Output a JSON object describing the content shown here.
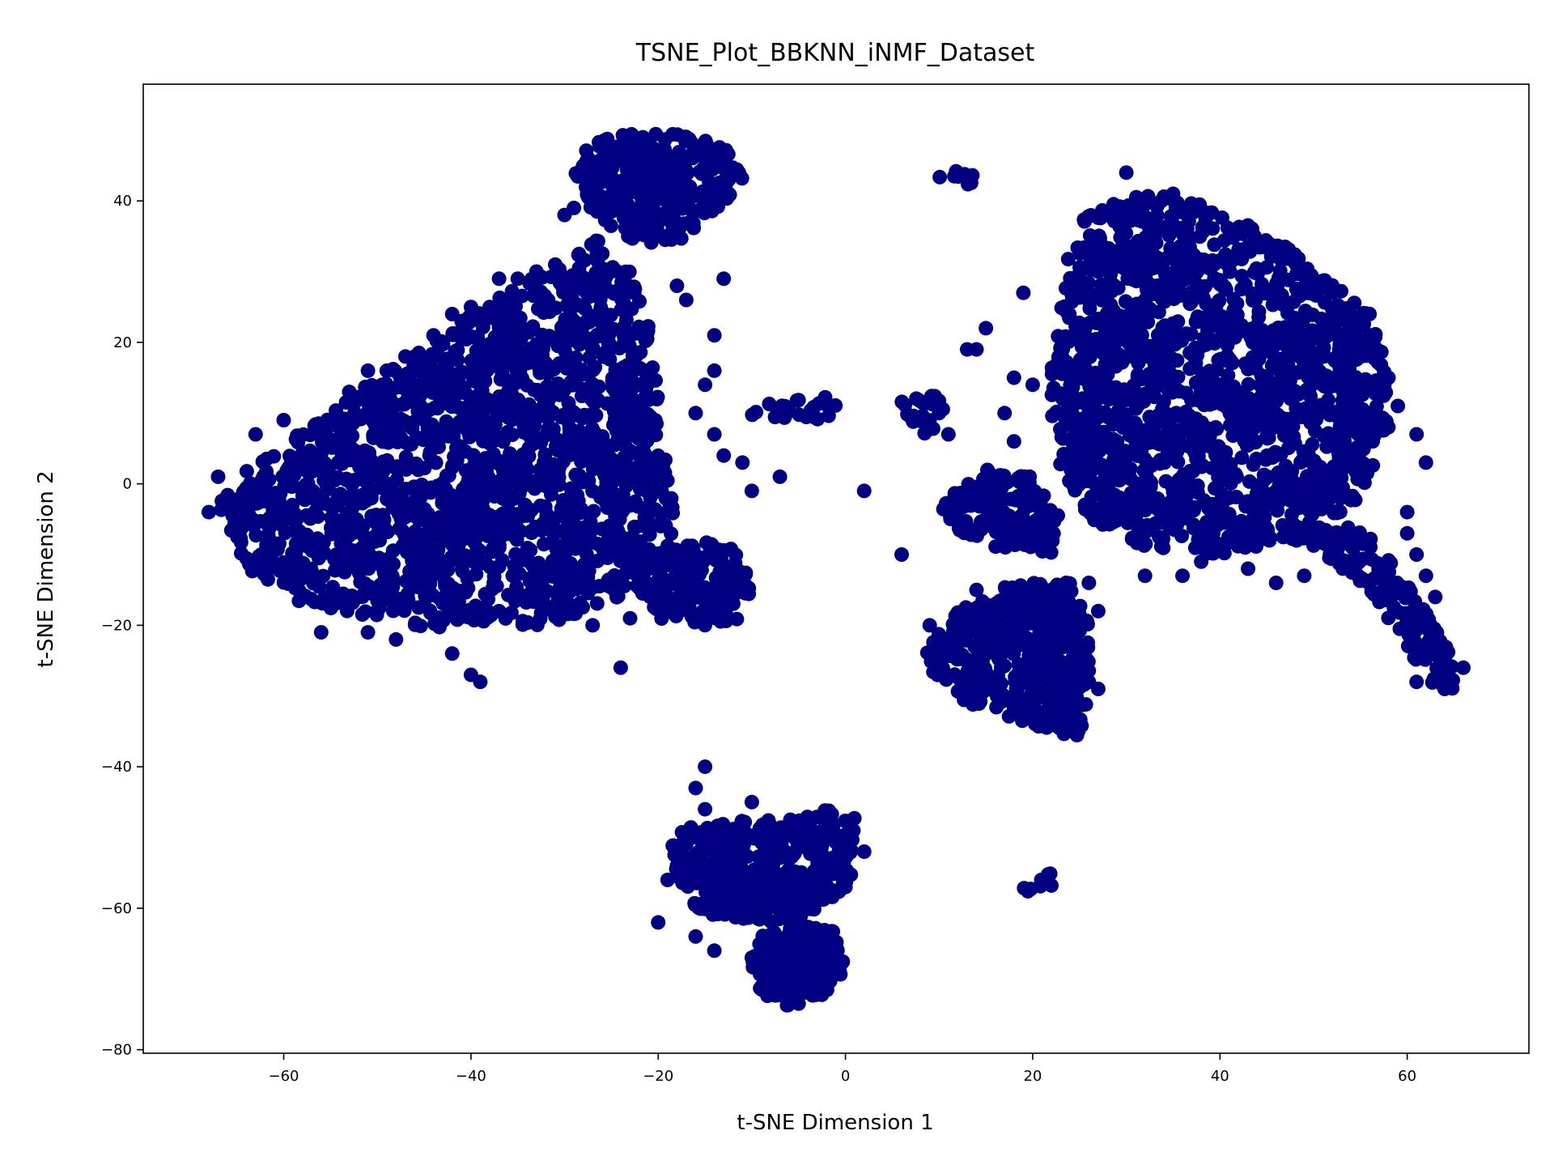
{
  "chart_data": {
    "type": "scatter",
    "title": "TSNE_Plot_BBKNN_iNMF_Dataset",
    "xlabel": "t-SNE Dimension 1",
    "ylabel": "t-SNE Dimension 2",
    "xlim": [
      -75,
      73
    ],
    "ylim": [
      -80.5,
      56.5
    ],
    "xticks": [
      -60,
      -40,
      -20,
      0,
      20,
      40,
      60
    ],
    "xtick_labels": [
      "−60",
      "−40",
      "−20",
      "0",
      "20",
      "40",
      "60"
    ],
    "yticks": [
      -80,
      -60,
      -40,
      -20,
      0,
      20,
      40
    ],
    "ytick_labels": [
      "−80",
      "−60",
      "−40",
      "−20",
      "0",
      "20",
      "40"
    ],
    "grid": false,
    "legend": "none",
    "point_color": "#000080",
    "clusters": [
      {
        "shape": "poly",
        "pts": [
          [
            -67,
            -3
          ],
          [
            -64,
            -12
          ],
          [
            -58,
            -17
          ],
          [
            -50,
            -19
          ],
          [
            -42,
            -21
          ],
          [
            -32,
            -20
          ],
          [
            -26,
            -17
          ],
          [
            -20,
            -14
          ],
          [
            -18,
            -8
          ],
          [
            -19,
            2
          ],
          [
            -20,
            12
          ],
          [
            -21,
            22
          ],
          [
            -23,
            30
          ],
          [
            -26,
            35
          ],
          [
            -32,
            30
          ],
          [
            -38,
            26
          ],
          [
            -44,
            20
          ],
          [
            -50,
            15
          ],
          [
            -56,
            9
          ],
          [
            -62,
            4
          ],
          [
            -66,
            0
          ]
        ],
        "n": 1800
      },
      {
        "shape": "poly",
        "pts": [
          [
            -29,
            47
          ],
          [
            -24,
            49.5
          ],
          [
            -18,
            49.5
          ],
          [
            -12,
            47.5
          ],
          [
            -11,
            43
          ],
          [
            -14,
            38
          ],
          [
            -18,
            34
          ],
          [
            -22,
            34
          ],
          [
            -26,
            37
          ],
          [
            -29,
            42
          ]
        ],
        "n": 330
      },
      {
        "shape": "poly",
        "pts": [
          [
            -21,
            -10
          ],
          [
            -16,
            -8
          ],
          [
            -12,
            -9
          ],
          [
            -10,
            -14
          ],
          [
            -11,
            -19
          ],
          [
            -15,
            -20
          ],
          [
            -20,
            -19
          ],
          [
            -22,
            -15
          ]
        ],
        "n": 160
      },
      {
        "shape": "poly",
        "pts": [
          [
            -10,
            11
          ],
          [
            -6,
            12
          ],
          [
            -1,
            12.5
          ],
          [
            0,
            10
          ],
          [
            -5,
            8.5
          ],
          [
            -10,
            9
          ]
        ],
        "n": 24
      },
      {
        "shape": "poly",
        "pts": [
          [
            6,
            12
          ],
          [
            10,
            12.5
          ],
          [
            11,
            9
          ],
          [
            9,
            6.5
          ],
          [
            6,
            8
          ]
        ],
        "n": 22
      },
      {
        "shape": "poly",
        "pts": [
          [
            10,
            45
          ],
          [
            14,
            44
          ],
          [
            14,
            42
          ],
          [
            10,
            43
          ]
        ],
        "n": 10
      },
      {
        "shape": "poly",
        "pts": [
          [
            25,
            37
          ],
          [
            31,
            42
          ],
          [
            37,
            40
          ],
          [
            44,
            36
          ],
          [
            50,
            31
          ],
          [
            56,
            24
          ],
          [
            58,
            17
          ],
          [
            58,
            8
          ],
          [
            55,
            -2
          ],
          [
            49,
            -8
          ],
          [
            40,
            -10
          ],
          [
            32,
            -9
          ],
          [
            26,
            -5
          ],
          [
            22,
            5
          ],
          [
            22,
            18
          ],
          [
            23,
            30
          ]
        ],
        "n": 1600
      },
      {
        "shape": "poly",
        "pts": [
          [
            10,
            -2
          ],
          [
            15,
            2
          ],
          [
            20,
            1
          ],
          [
            23,
            -5
          ],
          [
            22,
            -10
          ],
          [
            16,
            -9
          ],
          [
            11,
            -6
          ]
        ],
        "n": 150
      },
      {
        "shape": "poly",
        "pts": [
          [
            12,
            -18
          ],
          [
            18,
            -14
          ],
          [
            24,
            -14
          ],
          [
            26,
            -20
          ],
          [
            26,
            -30
          ],
          [
            25,
            -36
          ],
          [
            19,
            -34
          ],
          [
            13,
            -31
          ],
          [
            8,
            -25
          ],
          [
            10,
            -21
          ]
        ],
        "n": 420
      },
      {
        "shape": "poly",
        "pts": [
          [
            49,
            -6
          ],
          [
            55,
            -6
          ],
          [
            59,
            -12
          ],
          [
            62,
            -18
          ],
          [
            65,
            -25
          ],
          [
            65,
            -29
          ],
          [
            62,
            -28
          ],
          [
            59,
            -21
          ],
          [
            55,
            -14
          ],
          [
            50,
            -9
          ]
        ],
        "n": 150
      },
      {
        "shape": "poly",
        "pts": [
          [
            -19,
            -49
          ],
          [
            -14,
            -48
          ],
          [
            -8,
            -47
          ],
          [
            -2,
            -46
          ],
          [
            1,
            -47
          ],
          [
            1,
            -55
          ],
          [
            -2,
            -60
          ],
          [
            -6,
            -62
          ],
          [
            -12,
            -62
          ],
          [
            -16,
            -60
          ],
          [
            -18,
            -55
          ]
        ],
        "n": 430
      },
      {
        "shape": "poly",
        "pts": [
          [
            -9,
            -64
          ],
          [
            -5,
            -62
          ],
          [
            -1,
            -63
          ],
          [
            0,
            -69
          ],
          [
            -3,
            -73
          ],
          [
            -6,
            -74
          ],
          [
            -9,
            -72
          ],
          [
            -10,
            -68
          ]
        ],
        "n": 230
      },
      {
        "shape": "poly",
        "pts": [
          [
            19,
            -56
          ],
          [
            22,
            -55
          ],
          [
            22,
            -58
          ],
          [
            19,
            -58
          ]
        ],
        "n": 12
      }
    ],
    "points": [
      [
        -68,
        -4
      ],
      [
        -67,
        1
      ],
      [
        -63,
        7
      ],
      [
        -60,
        9
      ],
      [
        -55,
        9
      ],
      [
        -53,
        13
      ],
      [
        -51,
        16
      ],
      [
        -49,
        16
      ],
      [
        -47,
        18
      ],
      [
        -46,
        18
      ],
      [
        -44,
        21
      ],
      [
        -42,
        24
      ],
      [
        -40,
        25
      ],
      [
        -38,
        25
      ],
      [
        -37,
        29
      ],
      [
        -35,
        29
      ],
      [
        -33,
        30
      ],
      [
        -31,
        31
      ],
      [
        -30,
        38
      ],
      [
        -29,
        39
      ],
      [
        -14,
        21
      ],
      [
        -18,
        28
      ],
      [
        -17,
        26
      ],
      [
        -13,
        29
      ],
      [
        -14,
        16
      ],
      [
        -15,
        14
      ],
      [
        -16,
        10
      ],
      [
        -14,
        7
      ],
      [
        -13,
        4
      ],
      [
        -11,
        3
      ],
      [
        -10,
        -1
      ],
      [
        -7,
        1
      ],
      [
        2,
        -1
      ],
      [
        -24,
        -26
      ],
      [
        -27,
        -20
      ],
      [
        -23,
        -19
      ],
      [
        -48,
        -22
      ],
      [
        -42,
        -24
      ],
      [
        -40,
        -27
      ],
      [
        -39,
        -28
      ],
      [
        -51,
        -21
      ],
      [
        -56,
        -21
      ],
      [
        -15,
        -40
      ],
      [
        -16,
        -43
      ],
      [
        -15,
        -46
      ],
      [
        -10,
        -45
      ],
      [
        -18,
        -54
      ],
      [
        -19,
        -56
      ],
      [
        -20,
        -62
      ],
      [
        -16,
        -64
      ],
      [
        -14,
        -66
      ],
      [
        -10,
        -67
      ],
      [
        -1,
        -65
      ],
      [
        0,
        -57
      ],
      [
        2,
        -52
      ],
      [
        30,
        44
      ],
      [
        35,
        41
      ],
      [
        28,
        38
      ],
      [
        19,
        27
      ],
      [
        15,
        22
      ],
      [
        14,
        19
      ],
      [
        13,
        19
      ],
      [
        18,
        15
      ],
      [
        20,
        14
      ],
      [
        17,
        10
      ],
      [
        18,
        6
      ],
      [
        26,
        -14
      ],
      [
        27,
        -18
      ],
      [
        24,
        -22
      ],
      [
        26,
        -28
      ],
      [
        27,
        -29
      ],
      [
        32,
        -13
      ],
      [
        38,
        -11
      ],
      [
        36,
        -13
      ],
      [
        43,
        -12
      ],
      [
        46,
        -14
      ],
      [
        49,
        -13
      ],
      [
        52,
        27
      ],
      [
        54,
        22
      ],
      [
        56,
        21
      ],
      [
        58,
        15
      ],
      [
        57,
        13
      ],
      [
        59,
        11
      ],
      [
        61,
        7
      ],
      [
        62,
        3
      ],
      [
        60,
        -4
      ],
      [
        60,
        -7
      ],
      [
        61,
        -10
      ],
      [
        62,
        -13
      ],
      [
        63,
        -16
      ],
      [
        66,
        -26
      ],
      [
        64,
        -29
      ],
      [
        61,
        -28
      ],
      [
        14,
        -15
      ],
      [
        9,
        -20
      ],
      [
        6,
        -10
      ],
      [
        10,
        10
      ],
      [
        11,
        7
      ]
    ]
  }
}
